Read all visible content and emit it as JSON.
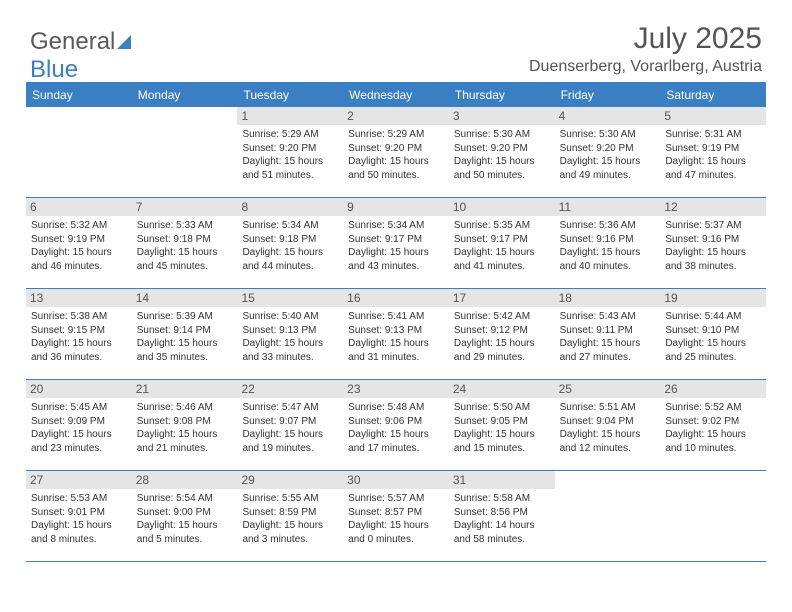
{
  "logo": {
    "text1": "General",
    "text2": "Blue"
  },
  "title": "July 2025",
  "subtitle": "Duenserberg, Vorarlberg, Austria",
  "colors": {
    "accent": "#3a7fc4",
    "header_bg": "#3a7fc4",
    "daynum_bg": "#e5e5e5",
    "text": "#555555",
    "body_text": "#333333"
  },
  "daynames": [
    "Sunday",
    "Monday",
    "Tuesday",
    "Wednesday",
    "Thursday",
    "Friday",
    "Saturday"
  ],
  "weeks": [
    [
      null,
      null,
      {
        "n": "1",
        "sr": "Sunrise: 5:29 AM",
        "ss": "Sunset: 9:20 PM",
        "d1": "Daylight: 15 hours",
        "d2": "and 51 minutes."
      },
      {
        "n": "2",
        "sr": "Sunrise: 5:29 AM",
        "ss": "Sunset: 9:20 PM",
        "d1": "Daylight: 15 hours",
        "d2": "and 50 minutes."
      },
      {
        "n": "3",
        "sr": "Sunrise: 5:30 AM",
        "ss": "Sunset: 9:20 PM",
        "d1": "Daylight: 15 hours",
        "d2": "and 50 minutes."
      },
      {
        "n": "4",
        "sr": "Sunrise: 5:30 AM",
        "ss": "Sunset: 9:20 PM",
        "d1": "Daylight: 15 hours",
        "d2": "and 49 minutes."
      },
      {
        "n": "5",
        "sr": "Sunrise: 5:31 AM",
        "ss": "Sunset: 9:19 PM",
        "d1": "Daylight: 15 hours",
        "d2": "and 47 minutes."
      }
    ],
    [
      {
        "n": "6",
        "sr": "Sunrise: 5:32 AM",
        "ss": "Sunset: 9:19 PM",
        "d1": "Daylight: 15 hours",
        "d2": "and 46 minutes."
      },
      {
        "n": "7",
        "sr": "Sunrise: 5:33 AM",
        "ss": "Sunset: 9:18 PM",
        "d1": "Daylight: 15 hours",
        "d2": "and 45 minutes."
      },
      {
        "n": "8",
        "sr": "Sunrise: 5:34 AM",
        "ss": "Sunset: 9:18 PM",
        "d1": "Daylight: 15 hours",
        "d2": "and 44 minutes."
      },
      {
        "n": "9",
        "sr": "Sunrise: 5:34 AM",
        "ss": "Sunset: 9:17 PM",
        "d1": "Daylight: 15 hours",
        "d2": "and 43 minutes."
      },
      {
        "n": "10",
        "sr": "Sunrise: 5:35 AM",
        "ss": "Sunset: 9:17 PM",
        "d1": "Daylight: 15 hours",
        "d2": "and 41 minutes."
      },
      {
        "n": "11",
        "sr": "Sunrise: 5:36 AM",
        "ss": "Sunset: 9:16 PM",
        "d1": "Daylight: 15 hours",
        "d2": "and 40 minutes."
      },
      {
        "n": "12",
        "sr": "Sunrise: 5:37 AM",
        "ss": "Sunset: 9:16 PM",
        "d1": "Daylight: 15 hours",
        "d2": "and 38 minutes."
      }
    ],
    [
      {
        "n": "13",
        "sr": "Sunrise: 5:38 AM",
        "ss": "Sunset: 9:15 PM",
        "d1": "Daylight: 15 hours",
        "d2": "and 36 minutes."
      },
      {
        "n": "14",
        "sr": "Sunrise: 5:39 AM",
        "ss": "Sunset: 9:14 PM",
        "d1": "Daylight: 15 hours",
        "d2": "and 35 minutes."
      },
      {
        "n": "15",
        "sr": "Sunrise: 5:40 AM",
        "ss": "Sunset: 9:13 PM",
        "d1": "Daylight: 15 hours",
        "d2": "and 33 minutes."
      },
      {
        "n": "16",
        "sr": "Sunrise: 5:41 AM",
        "ss": "Sunset: 9:13 PM",
        "d1": "Daylight: 15 hours",
        "d2": "and 31 minutes."
      },
      {
        "n": "17",
        "sr": "Sunrise: 5:42 AM",
        "ss": "Sunset: 9:12 PM",
        "d1": "Daylight: 15 hours",
        "d2": "and 29 minutes."
      },
      {
        "n": "18",
        "sr": "Sunrise: 5:43 AM",
        "ss": "Sunset: 9:11 PM",
        "d1": "Daylight: 15 hours",
        "d2": "and 27 minutes."
      },
      {
        "n": "19",
        "sr": "Sunrise: 5:44 AM",
        "ss": "Sunset: 9:10 PM",
        "d1": "Daylight: 15 hours",
        "d2": "and 25 minutes."
      }
    ],
    [
      {
        "n": "20",
        "sr": "Sunrise: 5:45 AM",
        "ss": "Sunset: 9:09 PM",
        "d1": "Daylight: 15 hours",
        "d2": "and 23 minutes."
      },
      {
        "n": "21",
        "sr": "Sunrise: 5:46 AM",
        "ss": "Sunset: 9:08 PM",
        "d1": "Daylight: 15 hours",
        "d2": "and 21 minutes."
      },
      {
        "n": "22",
        "sr": "Sunrise: 5:47 AM",
        "ss": "Sunset: 9:07 PM",
        "d1": "Daylight: 15 hours",
        "d2": "and 19 minutes."
      },
      {
        "n": "23",
        "sr": "Sunrise: 5:48 AM",
        "ss": "Sunset: 9:06 PM",
        "d1": "Daylight: 15 hours",
        "d2": "and 17 minutes."
      },
      {
        "n": "24",
        "sr": "Sunrise: 5:50 AM",
        "ss": "Sunset: 9:05 PM",
        "d1": "Daylight: 15 hours",
        "d2": "and 15 minutes."
      },
      {
        "n": "25",
        "sr": "Sunrise: 5:51 AM",
        "ss": "Sunset: 9:04 PM",
        "d1": "Daylight: 15 hours",
        "d2": "and 12 minutes."
      },
      {
        "n": "26",
        "sr": "Sunrise: 5:52 AM",
        "ss": "Sunset: 9:02 PM",
        "d1": "Daylight: 15 hours",
        "d2": "and 10 minutes."
      }
    ],
    [
      {
        "n": "27",
        "sr": "Sunrise: 5:53 AM",
        "ss": "Sunset: 9:01 PM",
        "d1": "Daylight: 15 hours",
        "d2": "and 8 minutes."
      },
      {
        "n": "28",
        "sr": "Sunrise: 5:54 AM",
        "ss": "Sunset: 9:00 PM",
        "d1": "Daylight: 15 hours",
        "d2": "and 5 minutes."
      },
      {
        "n": "29",
        "sr": "Sunrise: 5:55 AM",
        "ss": "Sunset: 8:59 PM",
        "d1": "Daylight: 15 hours",
        "d2": "and 3 minutes."
      },
      {
        "n": "30",
        "sr": "Sunrise: 5:57 AM",
        "ss": "Sunset: 8:57 PM",
        "d1": "Daylight: 15 hours",
        "d2": "and 0 minutes."
      },
      {
        "n": "31",
        "sr": "Sunrise: 5:58 AM",
        "ss": "Sunset: 8:56 PM",
        "d1": "Daylight: 14 hours",
        "d2": "and 58 minutes."
      },
      null,
      null
    ]
  ]
}
